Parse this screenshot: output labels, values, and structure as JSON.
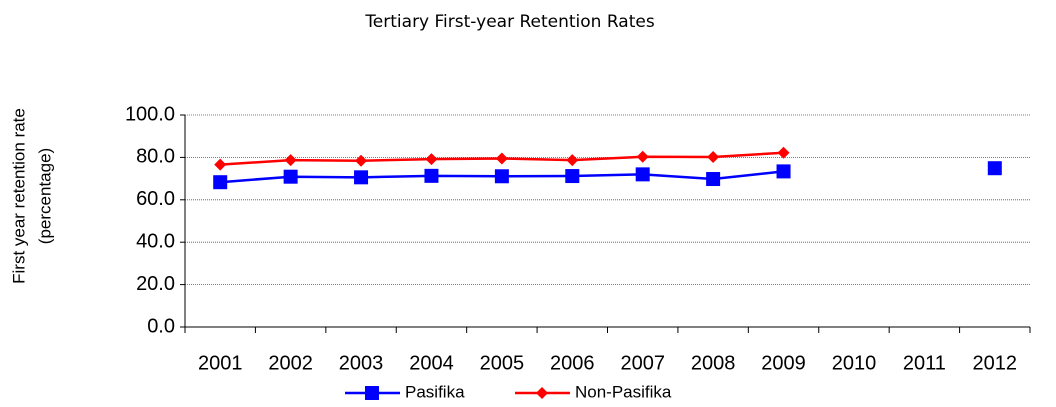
{
  "chart_data": {
    "type": "line",
    "title": "Tertiary First-year Retention Rates",
    "y_label": [
      "First year retention rate",
      "(percentage)"
    ],
    "categories": [
      "2001",
      "2002",
      "2003",
      "2004",
      "2005",
      "2006",
      "2007",
      "2008",
      "2009",
      "2010",
      "2011",
      "2012"
    ],
    "series": [
      {
        "name": "Pasifika",
        "color": "#0000ff",
        "marker": "square",
        "values": [
          68.3,
          70.9,
          70.6,
          71.3,
          71.1,
          71.2,
          72.0,
          69.8,
          73.4,
          null,
          null,
          74.9
        ]
      },
      {
        "name": "Non-Pasifika",
        "color": "#ff0000",
        "marker": "diamond",
        "values": [
          76.6,
          78.7,
          78.4,
          79.2,
          79.5,
          78.7,
          80.3,
          80.2,
          82.2,
          null,
          null,
          null
        ]
      }
    ],
    "ylim": [
      0,
      100
    ],
    "yticks": [
      {
        "value": 0,
        "label": "0.0"
      },
      {
        "value": 20,
        "label": "20.0"
      },
      {
        "value": 40,
        "label": "40.0"
      },
      {
        "value": 60,
        "label": "60.0"
      },
      {
        "value": 80,
        "label": "80.0"
      },
      {
        "value": 100,
        "label": "100.0"
      }
    ],
    "grid": true,
    "legend": "bottom"
  }
}
